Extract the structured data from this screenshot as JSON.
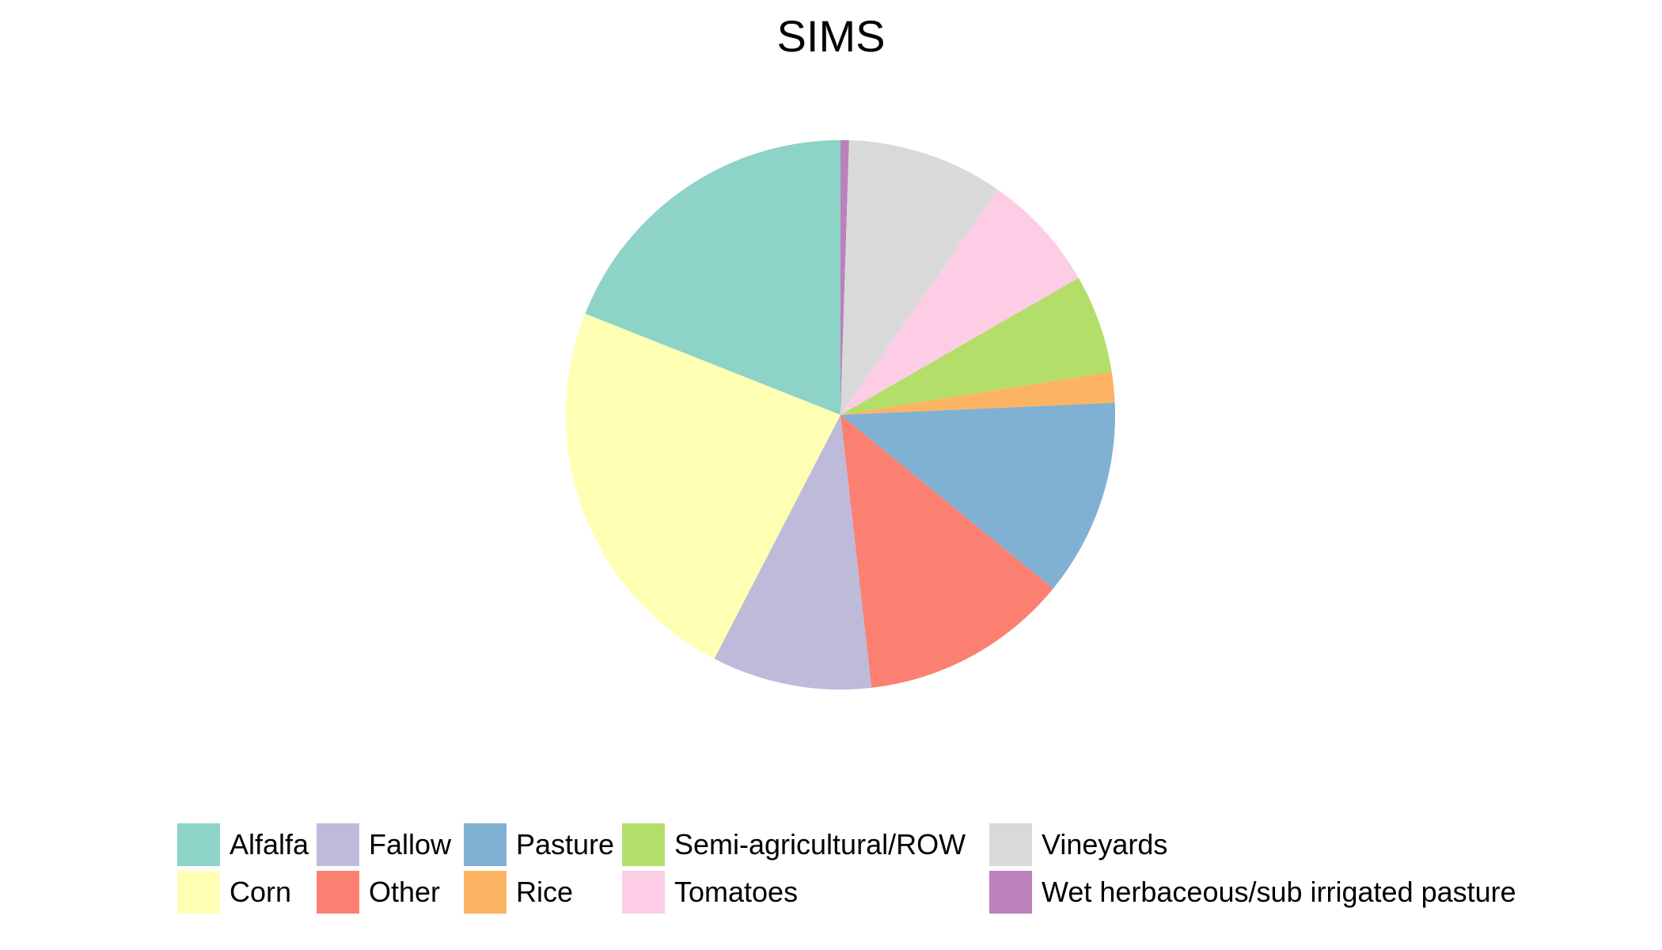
{
  "chart_data": {
    "type": "pie",
    "title": "SIMS",
    "legend_position": "bottom",
    "slices": [
      {
        "label": "Wet herbaceous/sub irrigated pasture",
        "value": 0.5,
        "color": "#BC80BD"
      },
      {
        "label": "Vineyards",
        "value": 9.2,
        "color": "#D9D9D9"
      },
      {
        "label": "Tomatoes",
        "value": 7.0,
        "color": "#FCCDE5"
      },
      {
        "label": "Semi-agricultural/ROW",
        "value": 5.8,
        "color": "#B3DE69"
      },
      {
        "label": "Rice",
        "value": 1.8,
        "color": "#FDB462"
      },
      {
        "label": "Pasture",
        "value": 11.6,
        "color": "#80B1D3"
      },
      {
        "label": "Other",
        "value": 12.3,
        "color": "#FB8072"
      },
      {
        "label": "Fallow",
        "value": 9.4,
        "color": "#BEBADA"
      },
      {
        "label": "Corn",
        "value": 23.4,
        "color": "#FFFFB3"
      },
      {
        "label": "Alfalfa",
        "value": 19.0,
        "color": "#8DD3C7"
      }
    ],
    "legend": [
      {
        "label": "Alfalfa",
        "color": "#8DD3C7"
      },
      {
        "label": "Corn",
        "color": "#FFFFB3"
      },
      {
        "label": "Fallow",
        "color": "#BEBADA"
      },
      {
        "label": "Other",
        "color": "#FB8072"
      },
      {
        "label": "Pasture",
        "color": "#80B1D3"
      },
      {
        "label": "Rice",
        "color": "#FDB462"
      },
      {
        "label": "Semi-agricultural/ROW",
        "color": "#B3DE69"
      },
      {
        "label": "Tomatoes",
        "color": "#FCCDE5"
      },
      {
        "label": "Vineyards",
        "color": "#D9D9D9"
      },
      {
        "label": "Wet herbaceous/sub irrigated pasture",
        "color": "#BC80BD"
      }
    ]
  }
}
